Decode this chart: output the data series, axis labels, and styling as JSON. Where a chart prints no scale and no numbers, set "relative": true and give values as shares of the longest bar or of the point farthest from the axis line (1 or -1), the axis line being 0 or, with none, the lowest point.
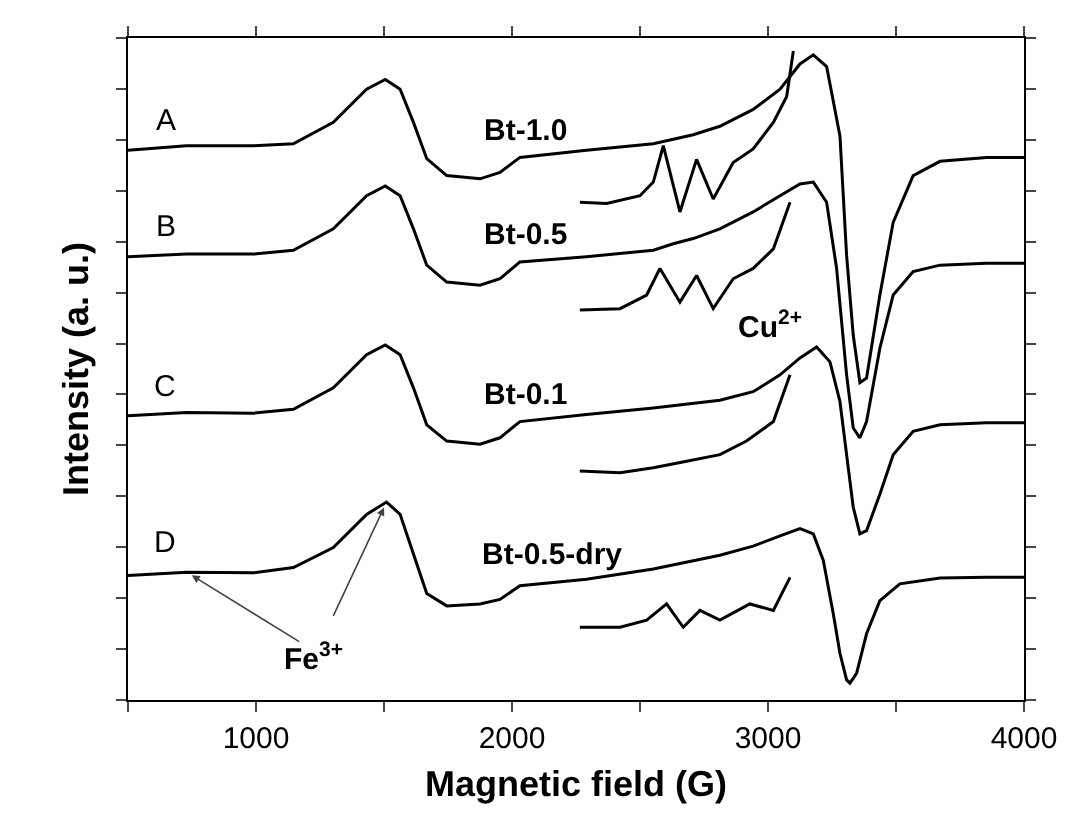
{
  "chart_data": {
    "type": "line",
    "relative": true,
    "xlabel": "Magnetic field (G)",
    "ylabel": "Intensity (a. u.)",
    "xlim": [
      500,
      4000
    ],
    "xticks": [
      {
        "value": 500,
        "label": null
      },
      1000,
      {
        "value": 1500,
        "label": null
      },
      2000,
      {
        "value": 2500,
        "label": null
      },
      3000,
      {
        "value": 3500,
        "label": null
      },
      4000
    ],
    "grid": false,
    "marker": "none",
    "line_style": "solid",
    "series": [
      {
        "color": "#000000",
        "x": [
          500,
          729,
          990,
          1146,
          1302,
          1432,
          1505,
          1563,
          1615,
          1667,
          1745,
          1875,
          1953,
          2031,
          2291,
          2552,
          2630,
          2708,
          2812,
          2942,
          3047,
          3125,
          3177,
          3229,
          3281,
          3307,
          3333,
          3359,
          3385,
          3437,
          3489,
          3567,
          3672,
          3854,
          4000
        ],
        "values": [
          0.847,
          0.854,
          0.854,
          0.857,
          0.89,
          0.941,
          0.956,
          0.941,
          0.89,
          0.834,
          0.808,
          0.803,
          0.813,
          0.836,
          0.847,
          0.857,
          0.864,
          0.871,
          0.884,
          0.91,
          0.941,
          0.98,
          0.994,
          0.976,
          0.869,
          0.685,
          0.562,
          0.489,
          0.496,
          0.624,
          0.736,
          0.808,
          0.83,
          0.836,
          0.836
        ]
      },
      {
        "color": "#000000",
        "x": [
          500,
          729,
          990,
          1146,
          1302,
          1432,
          1505,
          1563,
          1615,
          1667,
          1745,
          1875,
          1953,
          2031,
          2291,
          2552,
          2630,
          2708,
          2812,
          2942,
          3047,
          3125,
          3177,
          3229,
          3268,
          3307,
          3333,
          3359,
          3385,
          3437,
          3489,
          3567,
          3672,
          3854,
          4000
        ],
        "values": [
          0.683,
          0.687,
          0.687,
          0.693,
          0.726,
          0.777,
          0.792,
          0.777,
          0.726,
          0.67,
          0.644,
          0.639,
          0.649,
          0.675,
          0.683,
          0.693,
          0.703,
          0.711,
          0.726,
          0.752,
          0.777,
          0.795,
          0.798,
          0.767,
          0.665,
          0.501,
          0.419,
          0.404,
          0.429,
          0.542,
          0.624,
          0.66,
          0.67,
          0.673,
          0.673
        ]
      },
      {
        "color": "#000000",
        "x": [
          500,
          729,
          990,
          1146,
          1302,
          1432,
          1505,
          1563,
          1615,
          1667,
          1745,
          1875,
          1953,
          2031,
          2291,
          2552,
          2812,
          2942,
          3047,
          3125,
          3190,
          3242,
          3281,
          3307,
          3333,
          3359,
          3385,
          3437,
          3489,
          3567,
          3672,
          3854,
          4000
        ],
        "values": [
          0.438,
          0.443,
          0.442,
          0.448,
          0.481,
          0.532,
          0.547,
          0.532,
          0.481,
          0.424,
          0.399,
          0.394,
          0.404,
          0.429,
          0.44,
          0.45,
          0.462,
          0.475,
          0.501,
          0.527,
          0.544,
          0.521,
          0.46,
          0.378,
          0.297,
          0.256,
          0.261,
          0.317,
          0.378,
          0.414,
          0.424,
          0.427,
          0.427
        ]
      },
      {
        "color": "#000000",
        "x": [
          500,
          729,
          990,
          1146,
          1302,
          1432,
          1510,
          1563,
          1615,
          1667,
          1745,
          1875,
          1953,
          2031,
          2291,
          2552,
          2812,
          2942,
          3047,
          3125,
          3177,
          3216,
          3255,
          3281,
          3307,
          3320,
          3346,
          3385,
          3437,
          3515,
          3672,
          3854,
          4000
        ],
        "values": [
          0.192,
          0.197,
          0.196,
          0.204,
          0.235,
          0.286,
          0.305,
          0.286,
          0.225,
          0.164,
          0.145,
          0.148,
          0.155,
          0.176,
          0.186,
          0.202,
          0.223,
          0.237,
          0.253,
          0.264,
          0.256,
          0.215,
          0.133,
          0.072,
          0.031,
          0.026,
          0.041,
          0.102,
          0.153,
          0.179,
          0.188,
          0.189,
          0.189
        ]
      },
      {
        "color": "#000000",
        "x": [
          2265,
          2370,
          2500,
          2552,
          2591,
          2656,
          2721,
          2786,
          2864,
          2942,
          3021,
          3073,
          3099
        ],
        "values": [
          0.767,
          0.765,
          0.777,
          0.798,
          0.854,
          0.752,
          0.833,
          0.772,
          0.828,
          0.849,
          0.89,
          0.93,
          1.0
        ]
      },
      {
        "color": "#000000",
        "x": [
          2265,
          2422,
          2526,
          2578,
          2656,
          2721,
          2786,
          2864,
          2942,
          3021,
          3086
        ],
        "values": [
          0.601,
          0.603,
          0.624,
          0.665,
          0.613,
          0.654,
          0.603,
          0.649,
          0.665,
          0.695,
          0.767
        ]
      },
      {
        "color": "#000000",
        "x": [
          2265,
          2422,
          2552,
          2682,
          2812,
          2916,
          3021,
          3086
        ],
        "values": [
          0.353,
          0.35,
          0.358,
          0.368,
          0.378,
          0.399,
          0.429,
          0.501
        ]
      },
      {
        "color": "#000000",
        "x": [
          2265,
          2422,
          2526,
          2604,
          2669,
          2734,
          2812,
          2929,
          3021,
          3086
        ],
        "values": [
          0.112,
          0.112,
          0.123,
          0.148,
          0.112,
          0.138,
          0.123,
          0.148,
          0.138,
          0.189
        ]
      }
    ],
    "annotations": [
      "A",
      "B",
      "C",
      "D",
      "Bt-1.0",
      "Bt-0.5",
      "Bt-0.1",
      "Bt-0.5-dry",
      "Cu$^{2+}$",
      {
        "text": "Fe$^{3+}$",
        "x": 1510,
        "y": 0.305
      }
    ]
  }
}
